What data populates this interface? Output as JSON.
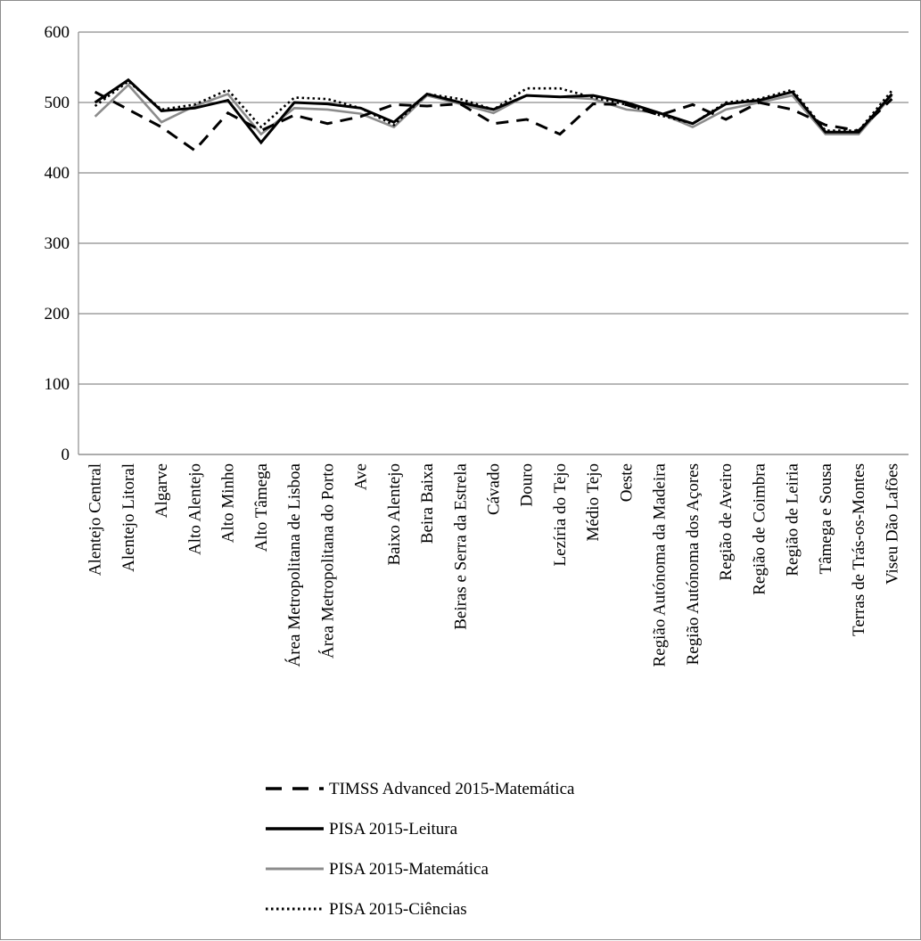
{
  "chart_data": {
    "type": "line",
    "ylim": [
      0,
      600
    ],
    "yticks": [
      0,
      100,
      200,
      300,
      400,
      500,
      600
    ],
    "grid": true,
    "legend_position": "bottom",
    "categories": [
      "Alentejo Central",
      "Alentejo Litoral",
      "Algarve",
      "Alto Alentejo",
      "Alto Minho",
      "Alto Tâmega",
      "Área Metropolitana de Lisboa",
      "Área Metropolitana do Porto",
      "Ave",
      "Baixo Alentejo",
      "Beira Baixa",
      "Beiras e Serra da Estrela",
      "Cávado",
      "Douro",
      "Lezíria do Tejo",
      "Médio Tejo",
      "Oeste",
      "Região Autónoma da Madeira",
      "Região Autónoma dos Açores",
      "Região de Aveiro",
      "Região de Coimbra",
      "Região de Leiria",
      "Tâmega e Sousa",
      "Terras de Trás-os-Montes",
      "Viseu Dão Lafões"
    ],
    "series": [
      {
        "name": "TIMSS Advanced 2015-Matemática",
        "style": "dashed",
        "color": "#000000",
        "values": [
          515,
          490,
          465,
          432,
          485,
          460,
          482,
          470,
          480,
          497,
          495,
          498,
          470,
          476,
          455,
          498,
          497,
          482,
          497,
          476,
          500,
          490,
          468,
          460,
          505
        ]
      },
      {
        "name": "PISA 2015-Leitura",
        "style": "solid",
        "color": "#000000",
        "values": [
          500,
          532,
          488,
          492,
          503,
          443,
          500,
          498,
          492,
          472,
          512,
          500,
          490,
          510,
          508,
          510,
          500,
          485,
          470,
          498,
          503,
          515,
          458,
          458,
          512
        ]
      },
      {
        "name": "PISA 2015-Matemática",
        "style": "solid",
        "color": "#8c8c8c",
        "values": [
          480,
          525,
          472,
          495,
          512,
          455,
          492,
          490,
          484,
          465,
          510,
          498,
          485,
          510,
          508,
          505,
          490,
          485,
          465,
          490,
          500,
          510,
          455,
          455,
          510
        ]
      },
      {
        "name": "PISA 2015-Ciências",
        "style": "dotted",
        "color": "#000000",
        "values": [
          495,
          530,
          490,
          497,
          518,
          465,
          507,
          505,
          492,
          468,
          512,
          505,
          490,
          520,
          520,
          507,
          497,
          482,
          470,
          500,
          505,
          518,
          460,
          460,
          517
        ]
      }
    ]
  }
}
